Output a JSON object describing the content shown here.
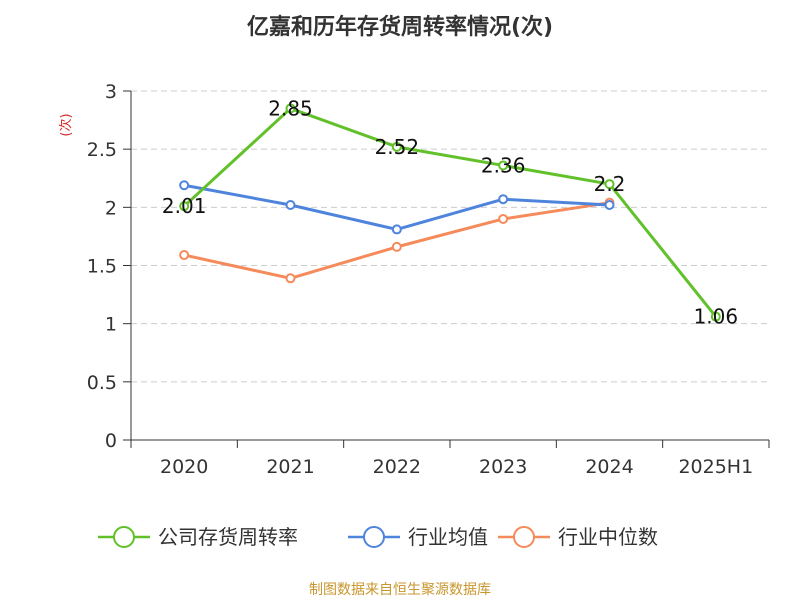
{
  "chart_data": {
    "type": "line",
    "title": "亿嘉和历年存货周转率情况(次)",
    "ylabel": "(次)",
    "categories": [
      "2020",
      "2021",
      "2022",
      "2023",
      "2024",
      "2025H1"
    ],
    "ylim": [
      0,
      3
    ],
    "yticks": [
      "0",
      "0.5",
      "1",
      "1.5",
      "2",
      "2.5",
      "3"
    ],
    "grid": true,
    "legend_position": "bottom",
    "series": [
      {
        "name": "公司存货周转率",
        "color": "#62c12b",
        "values": [
          2.01,
          2.85,
          2.52,
          2.36,
          2.2,
          1.06
        ],
        "labels": [
          "2.01",
          "2.85",
          "2.52",
          "2.36",
          "2.2",
          "1.06"
        ]
      },
      {
        "name": "行业均值",
        "color": "#4f84dd",
        "values": [
          2.19,
          2.02,
          1.81,
          2.07,
          2.02,
          null
        ]
      },
      {
        "name": "行业中位数",
        "color": "#f58a5a",
        "values": [
          1.59,
          1.39,
          1.66,
          1.9,
          2.04,
          null
        ]
      }
    ],
    "source": "制图数据来自恒生聚源数据库"
  },
  "colors": {
    "axis": "#333333",
    "grid": "#cccccc",
    "unit": "#d62b2b",
    "source": "#c8962c"
  }
}
